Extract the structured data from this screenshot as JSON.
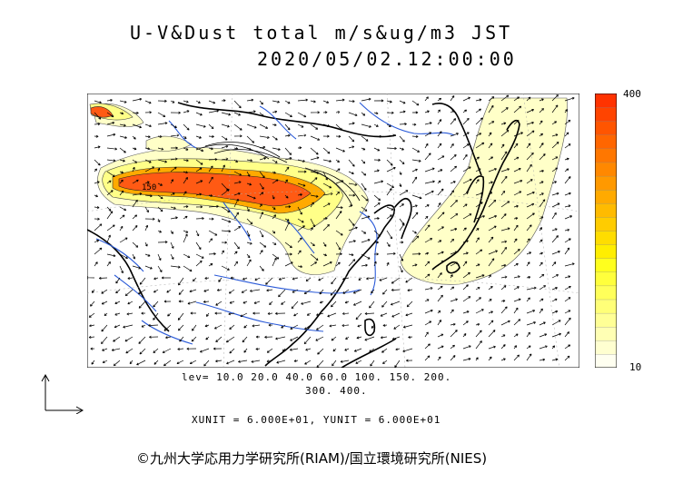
{
  "title": {
    "line1": "U-V&Dust total m/s&ug/m3 JST",
    "line2": "2020/05/02.12:00:00"
  },
  "legend": {
    "max_label": "400",
    "min_label": "10",
    "colors": [
      "#fffff0",
      "#ffffd0",
      "#ffffb4",
      "#ffff96",
      "#ffff78",
      "#ffff5a",
      "#ffff3c",
      "#ffff1e",
      "#ffee00",
      "#ffdd00",
      "#ffcc00",
      "#ffbb00",
      "#ffaa00",
      "#ff9900",
      "#ff8800",
      "#ff7700",
      "#ff6600",
      "#ff5500",
      "#ff4400",
      "#ff3300"
    ]
  },
  "levels": {
    "line1": "lev= 10.0 20.0 40.0 60.0 100. 150. 200.",
    "line2": "300. 400."
  },
  "contour_label": "150",
  "units": "XUNIT = 6.000E+01, YUNIT = 6.000E+01",
  "copyright": "©九州大学応用力学研究所(RIAM)/国立環境研究所(NIES)"
}
